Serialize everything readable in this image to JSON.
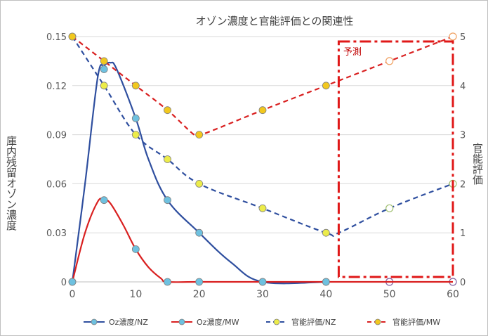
{
  "chart_data": {
    "type": "line",
    "title": "オゾン濃度と官能評価との関連性",
    "ylabel": "庫内残留オゾン濃度",
    "y2label": "官能評価",
    "xlabel": "",
    "x_ticks": [
      "0",
      "10",
      "20",
      "30",
      "40",
      "50",
      "60"
    ],
    "y_ticks": [
      "0",
      "0.03",
      "0.06",
      "0.09",
      "0.12",
      "0.15"
    ],
    "y2_ticks": [
      "0",
      "1",
      "2",
      "3",
      "4",
      "5"
    ],
    "xlim": [
      0,
      60
    ],
    "ylim": [
      0,
      0.15
    ],
    "y2lim": [
      0,
      5
    ],
    "grid": true,
    "annotation": "予測",
    "series": [
      {
        "name": "Oz濃度/NZ",
        "axis": "left",
        "line_color": "#2f4f9f",
        "marker_color": "#6ec1e0",
        "dashed": false,
        "points": [
          [
            0,
            0
          ],
          [
            5,
            0.13
          ],
          [
            10,
            0.1
          ],
          [
            15,
            0.05
          ],
          [
            20,
            0.03
          ],
          [
            30,
            0
          ],
          [
            40,
            0
          ]
        ],
        "curve": [
          [
            0,
            0
          ],
          [
            2,
            0.06
          ],
          [
            4,
            0.125
          ],
          [
            5,
            0.132
          ],
          [
            6,
            0.134
          ],
          [
            7,
            0.13
          ],
          [
            10,
            0.1
          ],
          [
            12,
            0.075
          ],
          [
            15,
            0.05
          ],
          [
            20,
            0.03
          ],
          [
            25,
            0.012
          ],
          [
            30,
            0
          ],
          [
            40,
            0
          ]
        ],
        "hollow_points": [
          [
            50,
            0
          ],
          [
            60,
            0
          ]
        ]
      },
      {
        "name": "Oz濃度/MW",
        "axis": "left",
        "line_color": "#d92020",
        "marker_color": "#6ec1e0",
        "dashed": false,
        "points": [
          [
            0,
            0
          ],
          [
            5,
            0.05
          ],
          [
            10,
            0.02
          ],
          [
            15,
            0
          ],
          [
            20,
            0
          ],
          [
            30,
            0
          ],
          [
            40,
            0
          ]
        ],
        "curve": [
          [
            0,
            0
          ],
          [
            2,
            0.03
          ],
          [
            4,
            0.049
          ],
          [
            5,
            0.05
          ],
          [
            6,
            0.048
          ],
          [
            8,
            0.035
          ],
          [
            10,
            0.02
          ],
          [
            12,
            0.009
          ],
          [
            14,
            0.002
          ],
          [
            15,
            0
          ],
          [
            20,
            0
          ],
          [
            30,
            0
          ],
          [
            40,
            0
          ],
          [
            60,
            0
          ]
        ],
        "hollow_points": []
      },
      {
        "name": "官能評価/NZ",
        "axis": "right",
        "line_color": "#2f4f9f",
        "marker_color": "#ecec4a",
        "dashed": true,
        "points": [
          [
            0,
            5
          ],
          [
            5,
            4
          ],
          [
            10,
            3
          ],
          [
            15,
            2.5
          ],
          [
            20,
            2
          ],
          [
            30,
            1.5
          ],
          [
            40,
            1
          ]
        ],
        "curve": [
          [
            0,
            5
          ],
          [
            5,
            4
          ],
          [
            10,
            3
          ],
          [
            15,
            2.5
          ],
          [
            20,
            2
          ],
          [
            30,
            1.5
          ],
          [
            40,
            1
          ],
          [
            42,
            1
          ],
          [
            50,
            1.5
          ],
          [
            60,
            2
          ]
        ],
        "hollow_points": [
          [
            50,
            1.5
          ],
          [
            60,
            2
          ]
        ]
      },
      {
        "name": "官能評価/MW",
        "axis": "right",
        "line_color": "#d92020",
        "marker_color": "#f2c81e",
        "dashed": true,
        "points": [
          [
            0,
            5
          ],
          [
            5,
            4.5
          ],
          [
            10,
            4
          ],
          [
            15,
            3.5
          ],
          [
            20,
            3
          ],
          [
            30,
            3.5
          ],
          [
            40,
            4
          ]
        ],
        "curve": [
          [
            0,
            5
          ],
          [
            5,
            4.5
          ],
          [
            10,
            4
          ],
          [
            15,
            3.5
          ],
          [
            19,
            3.02
          ],
          [
            20,
            3
          ],
          [
            22,
            3.08
          ],
          [
            30,
            3.5
          ],
          [
            40,
            4
          ],
          [
            50,
            4.5
          ],
          [
            60,
            5
          ]
        ],
        "hollow_points": [
          [
            50,
            4.5
          ],
          [
            60,
            5
          ]
        ]
      }
    ]
  },
  "colors": {
    "hollow_orange": "#f0a060",
    "hollow_green": "#a0c070",
    "hollow_purple": "#8060a0",
    "prediction_box": "#e01818",
    "grid": "#d9d9d9"
  }
}
